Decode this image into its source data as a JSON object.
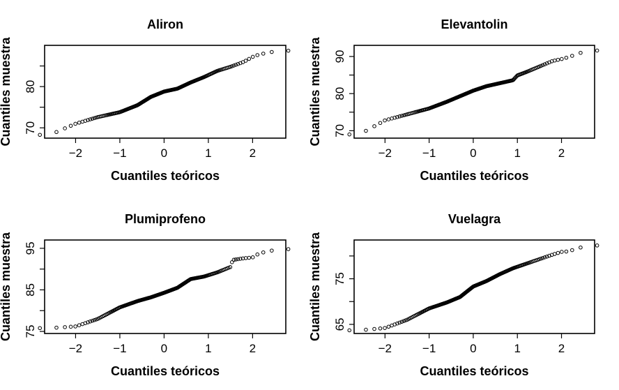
{
  "chart_data": [
    {
      "type": "scatter",
      "title": "Aliron",
      "xlabel": "Cuantiles teóricos",
      "ylabel": "Cuantiles muestra",
      "xlim": [
        -2.7,
        2.75
      ],
      "ylim": [
        67.5,
        90.0
      ],
      "x_ticks": [
        -2,
        -1,
        0,
        1,
        2
      ],
      "y_ticks": [
        70,
        80
      ],
      "y_minor_ticks": [
        75,
        85
      ],
      "x_anchor": [
        -2.58,
        -2.0,
        -1.5,
        -1.0,
        -0.6,
        -0.3,
        0.0,
        0.3,
        0.6,
        0.9,
        1.2,
        1.5,
        1.8,
        2.0,
        2.15,
        2.58
      ],
      "y_anchor": [
        68.3,
        71.0,
        72.6,
        73.8,
        75.5,
        77.5,
        78.8,
        79.5,
        81.0,
        82.3,
        83.8,
        84.8,
        86.0,
        87.2,
        87.8,
        88.7
      ]
    },
    {
      "type": "scatter",
      "title": "Elevantolin",
      "xlabel": "Cuantiles teóricos",
      "ylabel": "Cuantiles muestra",
      "xlim": [
        -2.7,
        2.75
      ],
      "ylim": [
        68.0,
        93.0
      ],
      "x_ticks": [
        -2,
        -1,
        0,
        1,
        2
      ],
      "y_ticks": [
        70,
        80,
        90
      ],
      "y_minor_ticks": [
        75,
        85
      ],
      "x_anchor": [
        -2.58,
        -2.0,
        -1.5,
        -1.0,
        -0.6,
        -0.3,
        0.0,
        0.3,
        0.6,
        0.9,
        1.0,
        1.2,
        1.5,
        1.8,
        2.0,
        2.15,
        2.58
      ],
      "y_anchor": [
        69.0,
        72.8,
        74.4,
        76.0,
        77.8,
        79.3,
        80.8,
        82.0,
        82.8,
        83.6,
        84.9,
        85.8,
        87.3,
        88.8,
        89.3,
        89.8,
        91.6
      ]
    },
    {
      "type": "scatter",
      "title": "Plumiprofeno",
      "xlabel": "Cuantiles teóricos",
      "ylabel": "Cuantiles muestra",
      "xlim": [
        -2.7,
        2.75
      ],
      "ylim": [
        74.5,
        97.0
      ],
      "x_ticks": [
        -2,
        -1,
        0,
        1,
        2
      ],
      "y_ticks": [
        75,
        85,
        95
      ],
      "y_minor_ticks": [
        80,
        90
      ],
      "x_anchor": [
        -2.58,
        -2.0,
        -1.5,
        -1.0,
        -0.6,
        -0.3,
        0.0,
        0.3,
        0.6,
        0.9,
        1.2,
        1.5,
        1.55,
        1.8,
        2.0,
        2.15,
        2.58
      ],
      "y_anchor": [
        75.8,
        76.2,
        78.0,
        80.8,
        82.3,
        83.2,
        84.3,
        85.5,
        87.6,
        88.2,
        89.2,
        90.5,
        92.2,
        92.6,
        92.8,
        93.8,
        94.8
      ]
    },
    {
      "type": "scatter",
      "title": "Vuelagra",
      "xlabel": "Cuantiles teóricos",
      "ylabel": "Cuantiles muestra",
      "xlim": [
        -2.7,
        2.75
      ],
      "ylim": [
        63.0,
        83.5
      ],
      "x_ticks": [
        -2,
        -1,
        0,
        1,
        2
      ],
      "y_ticks": [
        65,
        75
      ],
      "y_minor_ticks": [
        70,
        80
      ],
      "x_anchor": [
        -2.58,
        -2.0,
        -1.5,
        -1.0,
        -0.6,
        -0.3,
        0.0,
        0.3,
        0.6,
        0.9,
        1.2,
        1.5,
        1.8,
        2.0,
        2.15,
        2.58
      ],
      "y_anchor": [
        63.7,
        64.2,
        66.0,
        68.5,
        69.8,
        71.0,
        73.3,
        74.5,
        76.0,
        77.3,
        78.3,
        79.3,
        80.3,
        80.9,
        81.0,
        82.3
      ]
    }
  ]
}
